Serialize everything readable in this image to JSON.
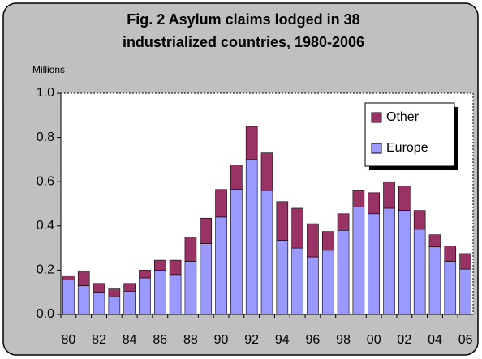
{
  "chart_data": {
    "type": "stacked_bar",
    "title": [
      "Fig. 2 Asylum claims lodged in 38",
      "industrialized countries, 1980-2006"
    ],
    "y_label": "Millions",
    "categories": [
      "80",
      null,
      "82",
      null,
      "84",
      null,
      "86",
      null,
      "88",
      null,
      "90",
      null,
      "92",
      null,
      "94",
      null,
      "96",
      null,
      "98",
      null,
      "00",
      null,
      "02",
      null,
      "04",
      null,
      "06"
    ],
    "series": [
      {
        "name": "Europe",
        "color": "#9999ff",
        "values": [
          0.155,
          0.13,
          0.1,
          0.08,
          0.105,
          0.165,
          0.2,
          0.18,
          0.24,
          0.32,
          0.44,
          0.565,
          0.7,
          0.56,
          0.335,
          0.3,
          0.26,
          0.29,
          0.38,
          0.485,
          0.455,
          0.48,
          0.47,
          0.385,
          0.305,
          0.24,
          0.205
        ]
      },
      {
        "name": "Other",
        "color": "#993366",
        "values": [
          0.02,
          0.065,
          0.04,
          0.035,
          0.035,
          0.035,
          0.045,
          0.065,
          0.11,
          0.115,
          0.125,
          0.11,
          0.15,
          0.17,
          0.175,
          0.18,
          0.15,
          0.085,
          0.075,
          0.075,
          0.095,
          0.12,
          0.11,
          0.085,
          0.055,
          0.07,
          0.07
        ]
      }
    ],
    "ylim": [
      0,
      1
    ],
    "yticks": [
      {
        "value": 0,
        "label": "0.0"
      },
      0.2,
      0.4,
      0.6,
      0.8,
      {
        "value": 1,
        "label": "1.0"
      }
    ],
    "legend": "top-right"
  }
}
